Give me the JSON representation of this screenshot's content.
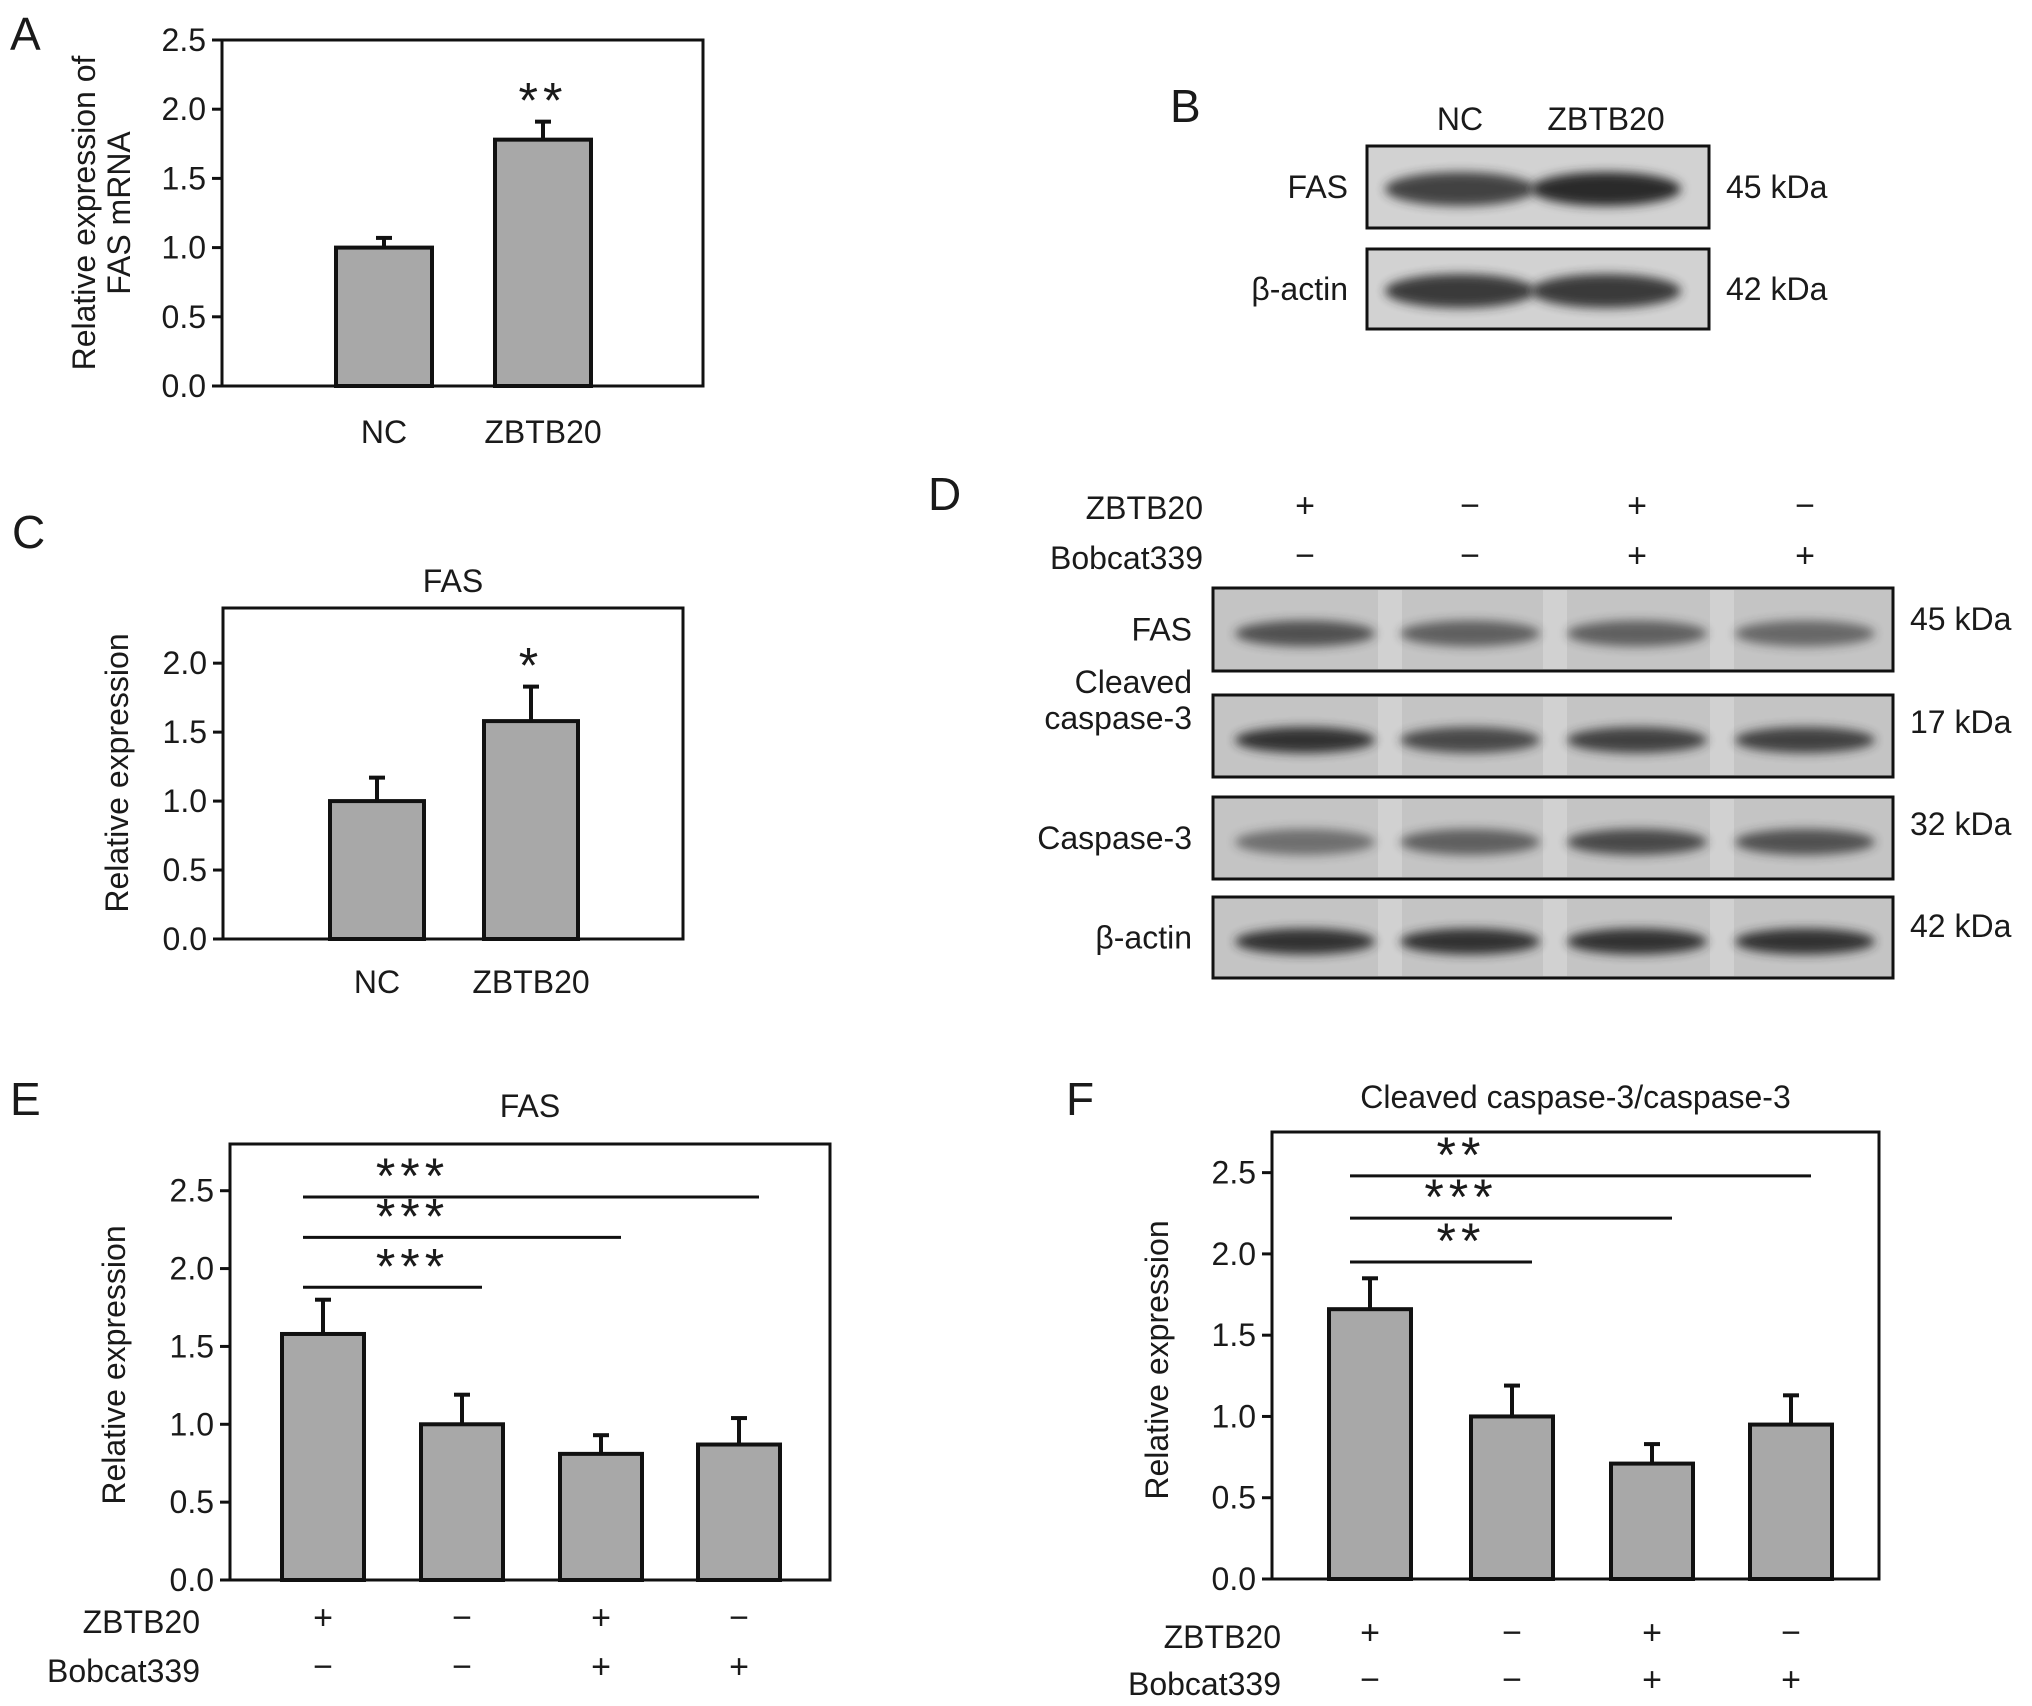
{
  "panels": {
    "A": "A",
    "B": "B",
    "C": "C",
    "D": "D",
    "E": "E",
    "F": "F"
  },
  "colors": {
    "bar_fill": "#a8a8a8",
    "line": "#111111",
    "blot_bg": "#c4c4c4",
    "band": "#2a2a2a"
  },
  "chart_data": [
    {
      "id": "A",
      "type": "bar",
      "title": "",
      "ylabel": [
        "Relative expression of",
        "FAS mRNA"
      ],
      "categories": [
        "NC",
        "ZBTB20"
      ],
      "values": [
        1.0,
        1.78
      ],
      "errors": [
        0.07,
        0.13
      ],
      "ylim": [
        0,
        2.5
      ],
      "yticks": [
        "0.0",
        "0.5",
        "1.0",
        "1.5",
        "2.0",
        "2.5"
      ],
      "significance": [
        {
          "bar": 1,
          "label": "**"
        }
      ],
      "grid": false
    },
    {
      "id": "C",
      "type": "bar",
      "title": "FAS",
      "ylabel": [
        "Relative expression"
      ],
      "categories": [
        "NC",
        "ZBTB20"
      ],
      "values": [
        1.0,
        1.58
      ],
      "errors": [
        0.17,
        0.25
      ],
      "ylim": [
        0,
        2.4
      ],
      "yticks": [
        "0.0",
        "0.5",
        "1.0",
        "1.5",
        "2.0"
      ],
      "significance": [
        {
          "bar": 1,
          "label": "*"
        }
      ],
      "grid": false
    },
    {
      "id": "E",
      "type": "bar",
      "title": "FAS",
      "ylabel": [
        "Relative expression"
      ],
      "row_labels": [
        "ZBTB20",
        "Bobcat339"
      ],
      "conditions": [
        [
          "+",
          "−"
        ],
        [
          "−",
          "−"
        ],
        [
          "+",
          "+"
        ],
        [
          "−",
          "+"
        ]
      ],
      "values": [
        1.58,
        1.0,
        0.81,
        0.87
      ],
      "errors": [
        0.22,
        0.19,
        0.12,
        0.17
      ],
      "ylim": [
        0,
        2.8
      ],
      "yticks": [
        "0.0",
        "0.5",
        "1.0",
        "1.5",
        "2.0",
        "2.5"
      ],
      "comparisons": [
        {
          "from": 0,
          "to": 1,
          "label": "***",
          "y": 1.88
        },
        {
          "from": 0,
          "to": 2,
          "label": "***",
          "y": 2.2
        },
        {
          "from": 0,
          "to": 3,
          "label": "***",
          "y": 2.46
        }
      ],
      "grid": false
    },
    {
      "id": "F",
      "type": "bar",
      "title": "Cleaved caspase-3/caspase-3",
      "ylabel": [
        "Relative expression"
      ],
      "row_labels": [
        "ZBTB20",
        "Bobcat339"
      ],
      "conditions": [
        [
          "+",
          "−"
        ],
        [
          "−",
          "−"
        ],
        [
          "+",
          "+"
        ],
        [
          "−",
          "+"
        ]
      ],
      "values": [
        1.66,
        1.0,
        0.71,
        0.95
      ],
      "errors": [
        0.19,
        0.19,
        0.12,
        0.18
      ],
      "ylim": [
        0,
        2.75
      ],
      "yticks": [
        "0.0",
        "0.5",
        "1.0",
        "1.5",
        "2.0",
        "2.5"
      ],
      "comparisons": [
        {
          "from": 0,
          "to": 1,
          "label": "**",
          "y": 1.95
        },
        {
          "from": 0,
          "to": 2,
          "label": "***",
          "y": 2.22
        },
        {
          "from": 0,
          "to": 3,
          "label": "**",
          "y": 2.48
        }
      ],
      "grid": false
    }
  ],
  "blot_B": {
    "lanes": [
      "NC",
      "ZBTB20"
    ],
    "rows": [
      {
        "label": "FAS",
        "size": "45 kDa",
        "intensity": [
          0.85,
          1.0
        ]
      },
      {
        "label": "β-actin",
        "size": "42 kDa",
        "intensity": [
          0.9,
          0.9
        ]
      }
    ]
  },
  "blot_D": {
    "condition_rows": [
      {
        "label": "ZBTB20",
        "signs": [
          "+",
          "−",
          "+",
          "−"
        ]
      },
      {
        "label": "Bobcat339",
        "signs": [
          "−",
          "−",
          "+",
          "+"
        ]
      }
    ],
    "rows": [
      {
        "label": [
          "FAS"
        ],
        "size": "45 kDa",
        "intensity": [
          0.75,
          0.65,
          0.65,
          0.6
        ]
      },
      {
        "label": [
          "Cleaved",
          "caspase-3"
        ],
        "size": "17 kDa",
        "intensity": [
          0.95,
          0.8,
          0.85,
          0.85
        ]
      },
      {
        "label": [
          "Caspase-3"
        ],
        "size": "32 kDa",
        "intensity": [
          0.55,
          0.65,
          0.8,
          0.75
        ]
      },
      {
        "label": [
          "β-actin"
        ],
        "size": "42 kDa",
        "intensity": [
          0.95,
          0.95,
          0.95,
          0.95
        ]
      }
    ]
  }
}
